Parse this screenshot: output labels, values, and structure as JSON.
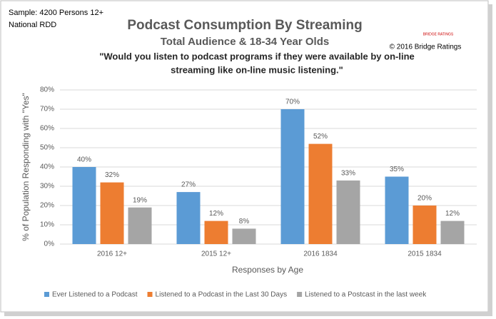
{
  "chart_data": {
    "type": "bar",
    "notes": [
      "Sample: 4200 Persons 12+",
      "National RDD"
    ],
    "title": "Podcast Consumption By Streaming",
    "subtitle": "Total Audience & 18-34 Year Olds",
    "logo": "BRIDGE RATINGS",
    "copyright": "© 2016 Bridge Ratings",
    "question": [
      "\"Would you listen to podcast programs if they were available by on-line",
      "streaming like on-line music listening.\""
    ],
    "y_label": "% of Population Responding with \"Yes\"",
    "x_label": "Responses by Age",
    "categories": [
      "2016 12+",
      "2015 12+",
      "2016 1834",
      "2015 1834"
    ],
    "series": [
      {
        "name": "Ever Listened to a Podcast",
        "color": "#5b9bd5",
        "values": [
          40,
          27,
          70,
          35
        ],
        "value_labels": [
          "40%",
          "27%",
          "70%",
          "35%"
        ]
      },
      {
        "name": "Listened to a Podcast in the Last 30 Days",
        "color": "#ed7d31",
        "values": [
          32,
          12,
          52,
          20
        ],
        "value_labels": [
          "32%",
          "12%",
          "52%",
          "20%"
        ]
      },
      {
        "name": "Listened to a Postcast in the last week",
        "color": "#a5a5a5",
        "values": [
          19,
          8,
          33,
          12
        ],
        "value_labels": [
          "19%",
          "8%",
          "33%",
          "12%"
        ]
      }
    ],
    "ylim": [
      0,
      80
    ],
    "yticks": [
      {
        "value": 0,
        "label": "0%"
      },
      {
        "value": 10,
        "label": "10%"
      },
      {
        "value": 20,
        "label": "20%"
      },
      {
        "value": 30,
        "label": "30%"
      },
      {
        "value": 40,
        "label": "40%"
      },
      {
        "value": 50,
        "label": "50%"
      },
      {
        "value": 60,
        "label": "60%"
      },
      {
        "value": 70,
        "label": "70%"
      },
      {
        "value": 80,
        "label": "80%"
      }
    ],
    "grid": true,
    "legend": "bottom"
  }
}
